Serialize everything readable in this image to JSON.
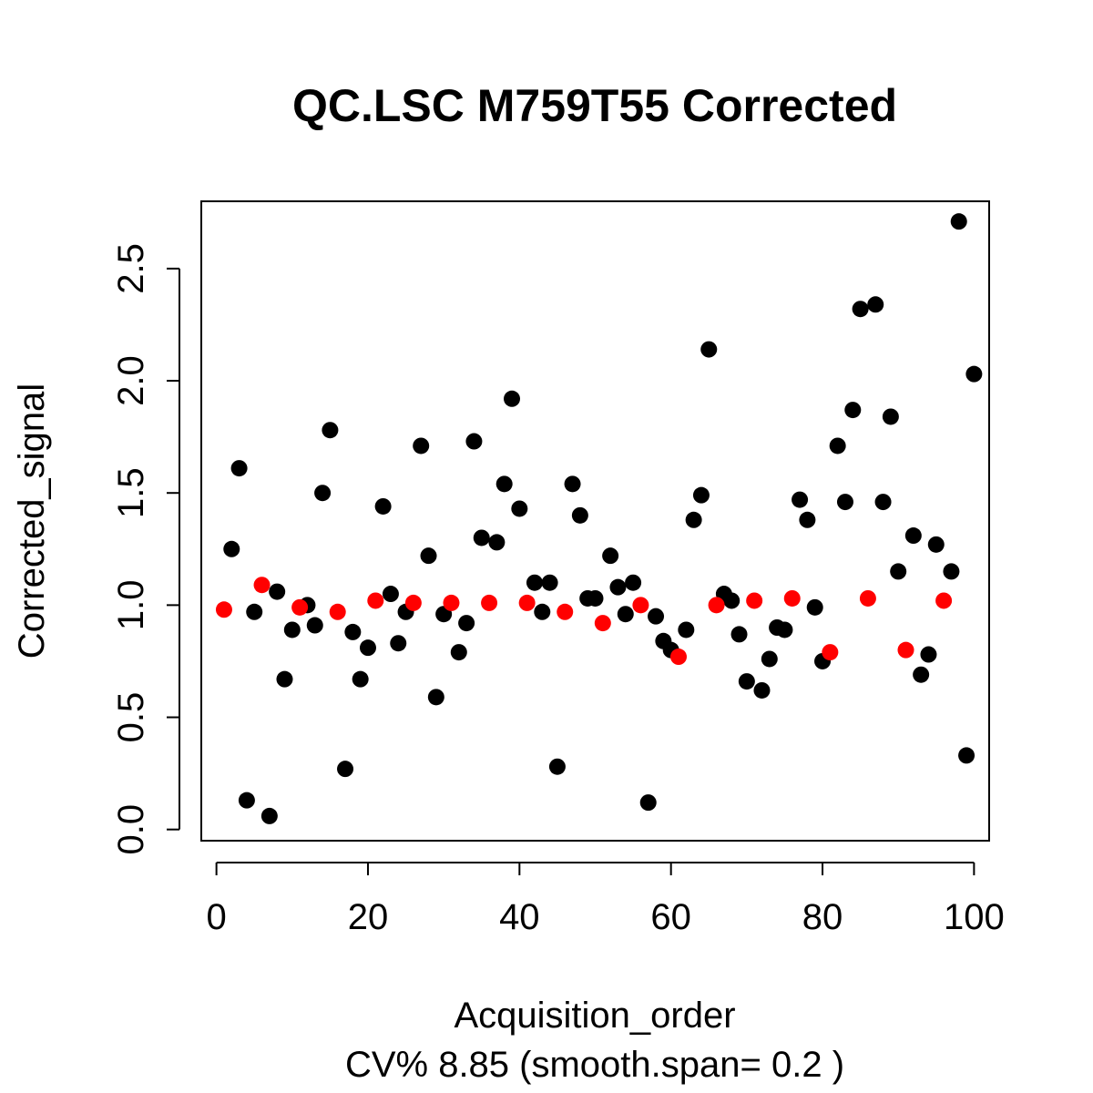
{
  "chart_data": {
    "type": "scatter",
    "title": "QC.LSC M759T55 Corrected",
    "xlabel": "Acquisition_order",
    "ylabel": "Corrected_signal",
    "subtitle": "CV% 8.85 (smooth.span= 0.2 )",
    "xlim": [
      -2,
      102
    ],
    "ylim": [
      -0.05,
      2.8
    ],
    "x_ticks": [
      0,
      20,
      40,
      60,
      80,
      100
    ],
    "x_tick_labels": [
      "0",
      "20",
      "40",
      "60",
      "80",
      "100"
    ],
    "y_ticks": [
      0.0,
      0.5,
      1.0,
      1.5,
      2.0,
      2.5
    ],
    "y_tick_labels": [
      "0.0",
      "0.5",
      "1.0",
      "1.5",
      "2.0",
      "2.5"
    ],
    "grid": false,
    "legend": false,
    "series": [
      {
        "color": "#000000",
        "points": [
          [
            2,
            1.25
          ],
          [
            3,
            1.61
          ],
          [
            4,
            0.13
          ],
          [
            5,
            0.97
          ],
          [
            7,
            0.06
          ],
          [
            8,
            1.06
          ],
          [
            9,
            0.67
          ],
          [
            10,
            0.89
          ],
          [
            12,
            1.0
          ],
          [
            13,
            0.91
          ],
          [
            14,
            1.5
          ],
          [
            15,
            1.78
          ],
          [
            17,
            0.27
          ],
          [
            18,
            0.88
          ],
          [
            19,
            0.67
          ],
          [
            20,
            0.81
          ],
          [
            22,
            1.44
          ],
          [
            23,
            1.05
          ],
          [
            24,
            0.83
          ],
          [
            25,
            0.97
          ],
          [
            27,
            1.71
          ],
          [
            28,
            1.22
          ],
          [
            29,
            0.59
          ],
          [
            30,
            0.96
          ],
          [
            32,
            0.79
          ],
          [
            33,
            0.92
          ],
          [
            34,
            1.73
          ],
          [
            35,
            1.3
          ],
          [
            37,
            1.28
          ],
          [
            38,
            1.54
          ],
          [
            39,
            1.92
          ],
          [
            40,
            1.43
          ],
          [
            42,
            1.1
          ],
          [
            43,
            0.97
          ],
          [
            44,
            1.1
          ],
          [
            45,
            0.28
          ],
          [
            47,
            1.54
          ],
          [
            48,
            1.4
          ],
          [
            49,
            1.03
          ],
          [
            50,
            1.03
          ],
          [
            52,
            1.22
          ],
          [
            53,
            1.08
          ],
          [
            54,
            0.96
          ],
          [
            55,
            1.1
          ],
          [
            57,
            0.12
          ],
          [
            58,
            0.95
          ],
          [
            59,
            0.84
          ],
          [
            60,
            0.8
          ],
          [
            62,
            0.89
          ],
          [
            63,
            1.38
          ],
          [
            64,
            1.49
          ],
          [
            65,
            2.14
          ],
          [
            67,
            1.05
          ],
          [
            68,
            1.02
          ],
          [
            69,
            0.87
          ],
          [
            70,
            0.66
          ],
          [
            72,
            0.62
          ],
          [
            73,
            0.76
          ],
          [
            74,
            0.9
          ],
          [
            75,
            0.89
          ],
          [
            77,
            1.47
          ],
          [
            78,
            1.38
          ],
          [
            79,
            0.99
          ],
          [
            80,
            0.75
          ],
          [
            82,
            1.71
          ],
          [
            83,
            1.46
          ],
          [
            84,
            1.87
          ],
          [
            85,
            2.32
          ],
          [
            87,
            2.34
          ],
          [
            88,
            1.46
          ],
          [
            89,
            1.84
          ],
          [
            90,
            1.15
          ],
          [
            92,
            1.31
          ],
          [
            93,
            0.69
          ],
          [
            94,
            0.78
          ],
          [
            95,
            1.27
          ],
          [
            97,
            1.15
          ],
          [
            98,
            2.71
          ],
          [
            99,
            0.33
          ],
          [
            100,
            2.03
          ]
        ]
      },
      {
        "color": "#ff0000",
        "points": [
          [
            1,
            0.98
          ],
          [
            6,
            1.09
          ],
          [
            11,
            0.99
          ],
          [
            16,
            0.97
          ],
          [
            21,
            1.02
          ],
          [
            26,
            1.01
          ],
          [
            31,
            1.01
          ],
          [
            36,
            1.01
          ],
          [
            41,
            1.01
          ],
          [
            46,
            0.97
          ],
          [
            51,
            0.92
          ],
          [
            56,
            1.0
          ],
          [
            61,
            0.77
          ],
          [
            66,
            1.0
          ],
          [
            71,
            1.02
          ],
          [
            76,
            1.03
          ],
          [
            81,
            0.79
          ],
          [
            86,
            1.03
          ],
          [
            91,
            0.8
          ],
          [
            96,
            1.02
          ]
        ]
      }
    ]
  }
}
